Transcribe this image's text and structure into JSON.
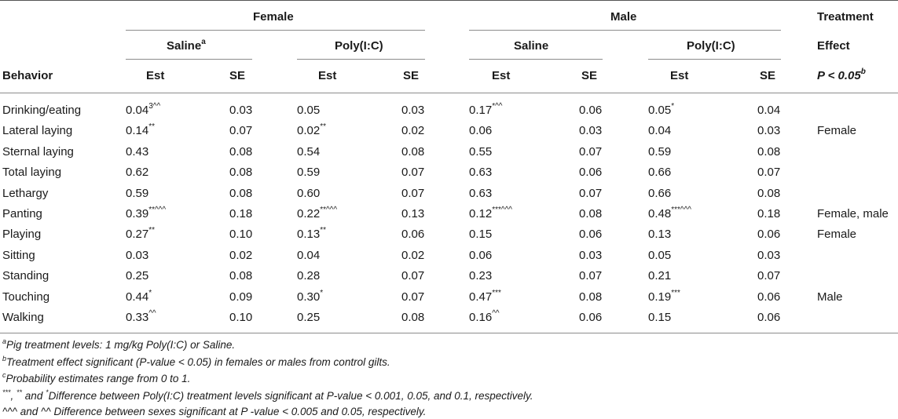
{
  "header": {
    "female": "Female",
    "male": "Male",
    "treatment_line1": "Treatment",
    "treatment_line2": "Effect",
    "p_label": "P < 0.05",
    "p_sup": "b",
    "behavior": "Behavior",
    "saline_female": "Saline",
    "saline_female_sup": "a",
    "polyic_female": "Poly(I:C)",
    "saline_male": "Saline",
    "polyic_male": "Poly(I:C)",
    "est": "Est",
    "se": "SE"
  },
  "rows": [
    {
      "behavior": "Drinking/eating",
      "f_sal_est": "0.04",
      "f_sal_sup": "3^^",
      "f_sal_se": "0.03",
      "f_pol_est": "0.05",
      "f_pol_sup": "",
      "f_pol_se": "0.03",
      "m_sal_est": "0.17",
      "m_sal_sup": "*^^",
      "m_sal_se": "0.06",
      "m_pol_est": "0.05",
      "m_pol_sup": "*",
      "m_pol_se": "0.04",
      "effect": ""
    },
    {
      "behavior": "Lateral laying",
      "f_sal_est": "0.14",
      "f_sal_sup": "**",
      "f_sal_se": "0.07",
      "f_pol_est": "0.02",
      "f_pol_sup": "**",
      "f_pol_se": "0.02",
      "m_sal_est": "0.06",
      "m_sal_sup": "",
      "m_sal_se": "0.03",
      "m_pol_est": "0.04",
      "m_pol_sup": "",
      "m_pol_se": "0.03",
      "effect": "Female"
    },
    {
      "behavior": "Sternal laying",
      "f_sal_est": "0.43",
      "f_sal_sup": "",
      "f_sal_se": "0.08",
      "f_pol_est": "0.54",
      "f_pol_sup": "",
      "f_pol_se": "0.08",
      "m_sal_est": "0.55",
      "m_sal_sup": "",
      "m_sal_se": "0.07",
      "m_pol_est": "0.59",
      "m_pol_sup": "",
      "m_pol_se": "0.08",
      "effect": ""
    },
    {
      "behavior": "Total laying",
      "f_sal_est": "0.62",
      "f_sal_sup": "",
      "f_sal_se": "0.08",
      "f_pol_est": "0.59",
      "f_pol_sup": "",
      "f_pol_se": "0.07",
      "m_sal_est": "0.63",
      "m_sal_sup": "",
      "m_sal_se": "0.06",
      "m_pol_est": "0.66",
      "m_pol_sup": "",
      "m_pol_se": "0.07",
      "effect": ""
    },
    {
      "behavior": "Lethargy",
      "f_sal_est": "0.59",
      "f_sal_sup": "",
      "f_sal_se": "0.08",
      "f_pol_est": "0.60",
      "f_pol_sup": "",
      "f_pol_se": "0.07",
      "m_sal_est": "0.63",
      "m_sal_sup": "",
      "m_sal_se": "0.07",
      "m_pol_est": "0.66",
      "m_pol_sup": "",
      "m_pol_se": "0.08",
      "effect": ""
    },
    {
      "behavior": "Panting",
      "f_sal_est": "0.39",
      "f_sal_sup": "**^^^",
      "f_sal_se": "0.18",
      "f_pol_est": "0.22",
      "f_pol_sup": "**^^^",
      "f_pol_se": "0.13",
      "m_sal_est": "0.12",
      "m_sal_sup": "***^^^",
      "m_sal_se": "0.08",
      "m_pol_est": "0.48",
      "m_pol_sup": "***^^^",
      "m_pol_se": "0.18",
      "effect": "Female, male"
    },
    {
      "behavior": "Playing",
      "f_sal_est": "0.27",
      "f_sal_sup": "**",
      "f_sal_se": "0.10",
      "f_pol_est": "0.13",
      "f_pol_sup": "**",
      "f_pol_se": "0.06",
      "m_sal_est": "0.15",
      "m_sal_sup": "",
      "m_sal_se": "0.06",
      "m_pol_est": "0.13",
      "m_pol_sup": "",
      "m_pol_se": "0.06",
      "effect": "Female"
    },
    {
      "behavior": "Sitting",
      "f_sal_est": "0.03",
      "f_sal_sup": "",
      "f_sal_se": "0.02",
      "f_pol_est": "0.04",
      "f_pol_sup": "",
      "f_pol_se": "0.02",
      "m_sal_est": "0.06",
      "m_sal_sup": "",
      "m_sal_se": "0.03",
      "m_pol_est": "0.05",
      "m_pol_sup": "",
      "m_pol_se": "0.03",
      "effect": ""
    },
    {
      "behavior": "Standing",
      "f_sal_est": "0.25",
      "f_sal_sup": "",
      "f_sal_se": "0.08",
      "f_pol_est": "0.28",
      "f_pol_sup": "",
      "f_pol_se": "0.07",
      "m_sal_est": "0.23",
      "m_sal_sup": "",
      "m_sal_se": "0.07",
      "m_pol_est": "0.21",
      "m_pol_sup": "",
      "m_pol_se": "0.07",
      "effect": ""
    },
    {
      "behavior": "Touching",
      "f_sal_est": "0.44",
      "f_sal_sup": "*",
      "f_sal_se": "0.09",
      "f_pol_est": "0.30",
      "f_pol_sup": "*",
      "f_pol_se": "0.07",
      "m_sal_est": "0.47",
      "m_sal_sup": "***",
      "m_sal_se": "0.08",
      "m_pol_est": "0.19",
      "m_pol_sup": "***",
      "m_pol_se": "0.06",
      "effect": "Male"
    },
    {
      "behavior": "Walking",
      "f_sal_est": "0.33",
      "f_sal_sup": "^^",
      "f_sal_se": "0.10",
      "f_pol_est": "0.25",
      "f_pol_sup": "",
      "f_pol_se": "0.08",
      "m_sal_est": "0.16",
      "m_sal_sup": "^^",
      "m_sal_se": "0.06",
      "m_pol_est": "0.15",
      "m_pol_sup": "",
      "m_pol_se": "0.06",
      "effect": ""
    }
  ],
  "footnotes": [
    {
      "mark": "a",
      "text": "Pig treatment levels: 1 mg/kg Poly(I:C) or Saline."
    },
    {
      "mark": "b",
      "text": "Treatment effect significant (P-value < 0.05) in females or males from control gilts."
    },
    {
      "mark": "c",
      "text": "Probability estimates range from 0 to 1."
    }
  ],
  "footnote4": {
    "sup1": "***",
    "sep1": ", ",
    "sup2": "**",
    "sep2": " and ",
    "sup3": "*",
    "text": "Difference between Poly(I:C) treatment levels significant at P-value < 0.001, 0.05, and 0.1, respectively."
  },
  "footnote5": {
    "prefix": "^^^ and ^^",
    "text": "Difference between sexes significant at P -value < 0.005 and 0.05, respectively."
  }
}
